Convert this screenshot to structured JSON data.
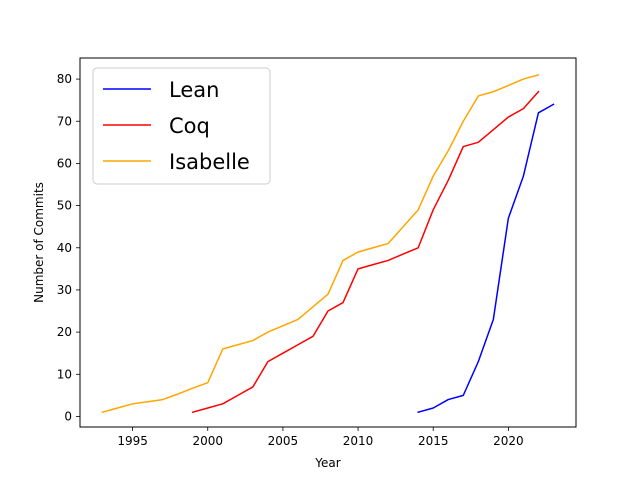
{
  "chart_data": {
    "type": "line",
    "title": "",
    "xlabel": "Year",
    "ylabel": "Number of Commits",
    "xlim": [
      1991.5,
      2024.5
    ],
    "ylim": [
      -2.5,
      85.0
    ],
    "xticks": [
      1995,
      2000,
      2005,
      2010,
      2015,
      2020
    ],
    "yticks": [
      0,
      10,
      20,
      30,
      40,
      50,
      60,
      70,
      80
    ],
    "grid": false,
    "legend_position": "top-left",
    "series": [
      {
        "name": "Lean",
        "color": "#0000ff",
        "x": [
          2014,
          2015,
          2016,
          2017,
          2018,
          2019,
          2020,
          2021,
          2022,
          2023
        ],
        "y": [
          1,
          2,
          4,
          5,
          13,
          23,
          47,
          57,
          72,
          74
        ]
      },
      {
        "name": "Coq",
        "color": "#ff0000",
        "x": [
          1999,
          2000,
          2001,
          2002,
          2003,
          2004,
          2005,
          2006,
          2007,
          2008,
          2009,
          2010,
          2011,
          2012,
          2013,
          2014,
          2015,
          2016,
          2017,
          2018,
          2019,
          2020,
          2021,
          2022
        ],
        "y": [
          1,
          2,
          3,
          5,
          7,
          13,
          15,
          17,
          19,
          25,
          27,
          35,
          36,
          37,
          38.5,
          40,
          49,
          56,
          64,
          65,
          68,
          71,
          73,
          77
        ]
      },
      {
        "name": "Isabelle",
        "color": "#ffa500",
        "x": [
          1993,
          1994,
          1995,
          1996,
          1997,
          1998,
          1999,
          2000,
          2001,
          2002,
          2003,
          2004,
          2005,
          2006,
          2007,
          2008,
          2009,
          2010,
          2011,
          2012,
          2013,
          2014,
          2015,
          2016,
          2017,
          2018,
          2019,
          2020,
          2021,
          2022
        ],
        "y": [
          1,
          2,
          3,
          3.5,
          4,
          5.3,
          6.7,
          8,
          16,
          17,
          18,
          20,
          21.5,
          23,
          26,
          29,
          37,
          39,
          40,
          41,
          45,
          49,
          57,
          63,
          70,
          76,
          77,
          78.5,
          80,
          81
        ]
      }
    ]
  }
}
